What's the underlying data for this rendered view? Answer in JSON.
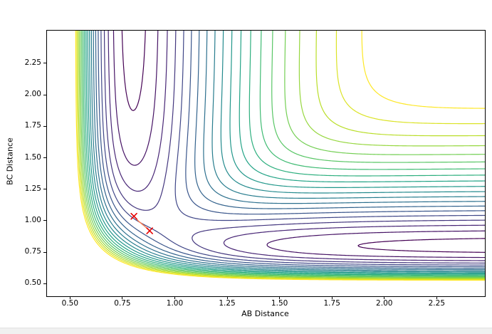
{
  "figure": {
    "background": "#ffffff"
  },
  "chart_data": {
    "type": "contour",
    "title": "",
    "xlabel": "AB Distance",
    "ylabel": "BC Distance",
    "xlim": [
      0.39,
      2.48
    ],
    "ylim": [
      0.4,
      2.51
    ],
    "xticks": [
      0.5,
      0.75,
      1.0,
      1.25,
      1.5,
      1.75,
      2.0,
      2.25
    ],
    "yticks": [
      0.5,
      0.75,
      1.0,
      1.25,
      1.5,
      1.75,
      2.0,
      2.25
    ],
    "tick_format_decimals": 2,
    "grid": false,
    "legend": null,
    "colormap": "viridis",
    "colormap_stops": [
      [
        0.0,
        "#440154"
      ],
      [
        0.1,
        "#482475"
      ],
      [
        0.2,
        "#414487"
      ],
      [
        0.3,
        "#355f8d"
      ],
      [
        0.4,
        "#2a788e"
      ],
      [
        0.5,
        "#21918c"
      ],
      [
        0.6,
        "#22a884"
      ],
      [
        0.7,
        "#44bf70"
      ],
      [
        0.8,
        "#7ad151"
      ],
      [
        0.9,
        "#bddf26"
      ],
      [
        1.0,
        "#fde725"
      ]
    ],
    "surface": {
      "model": "LEPS collinear A-B-C potential energy surface V(rAB, rBC)",
      "d": 1.0,
      "alpha": 2.4,
      "r0": 0.8,
      "sato": 0.15,
      "grid_n": 300
    },
    "levels": {
      "min": -0.85,
      "max": -0.12,
      "count": 20
    },
    "features": {
      "reactant_valley": "vertical channel near AB ~ 0.85 extending to large BC",
      "product_valley": "horizontal channel near BC ~ 0.85 extending to large AB",
      "saddle_region": [
        0.88,
        0.92
      ]
    },
    "optimization_path": {
      "points": [
        [
          0.805,
          1.035
        ],
        [
          0.828,
          0.995
        ],
        [
          0.852,
          0.962
        ],
        [
          0.88,
          0.92
        ]
      ],
      "marker_points": [
        [
          0.805,
          1.035
        ],
        [
          0.88,
          0.92
        ]
      ],
      "marker": "x",
      "line_color": "#ff7f50",
      "marker_color": "#e60000"
    }
  },
  "window": {
    "bottom_strip_color": "#f0f0f0"
  }
}
